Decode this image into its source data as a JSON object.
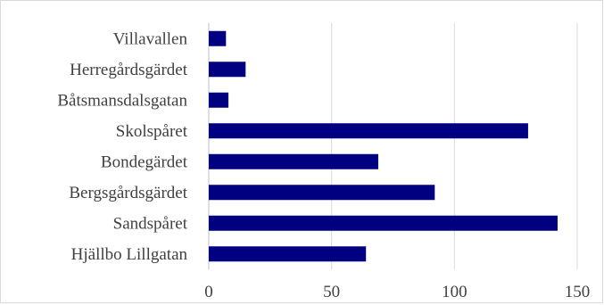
{
  "chart_data": {
    "type": "bar",
    "orientation": "horizontal",
    "categories": [
      "Villavallen",
      "Herregårdsgärdet",
      "Båtsmansdalsgatan",
      "Skolspåret",
      "Bondegärdet",
      "Bergsgårdsgärdet",
      "Sandspåret",
      "Hjällbo Lillgatan"
    ],
    "values": [
      7,
      15,
      8,
      130,
      69,
      92,
      142,
      64
    ],
    "xlim": [
      0,
      150
    ],
    "xticks": [
      0,
      50,
      100,
      150
    ],
    "grid": "vertical",
    "legend": "none",
    "bar_color": "#000080",
    "title": "",
    "xlabel": "",
    "ylabel": ""
  }
}
